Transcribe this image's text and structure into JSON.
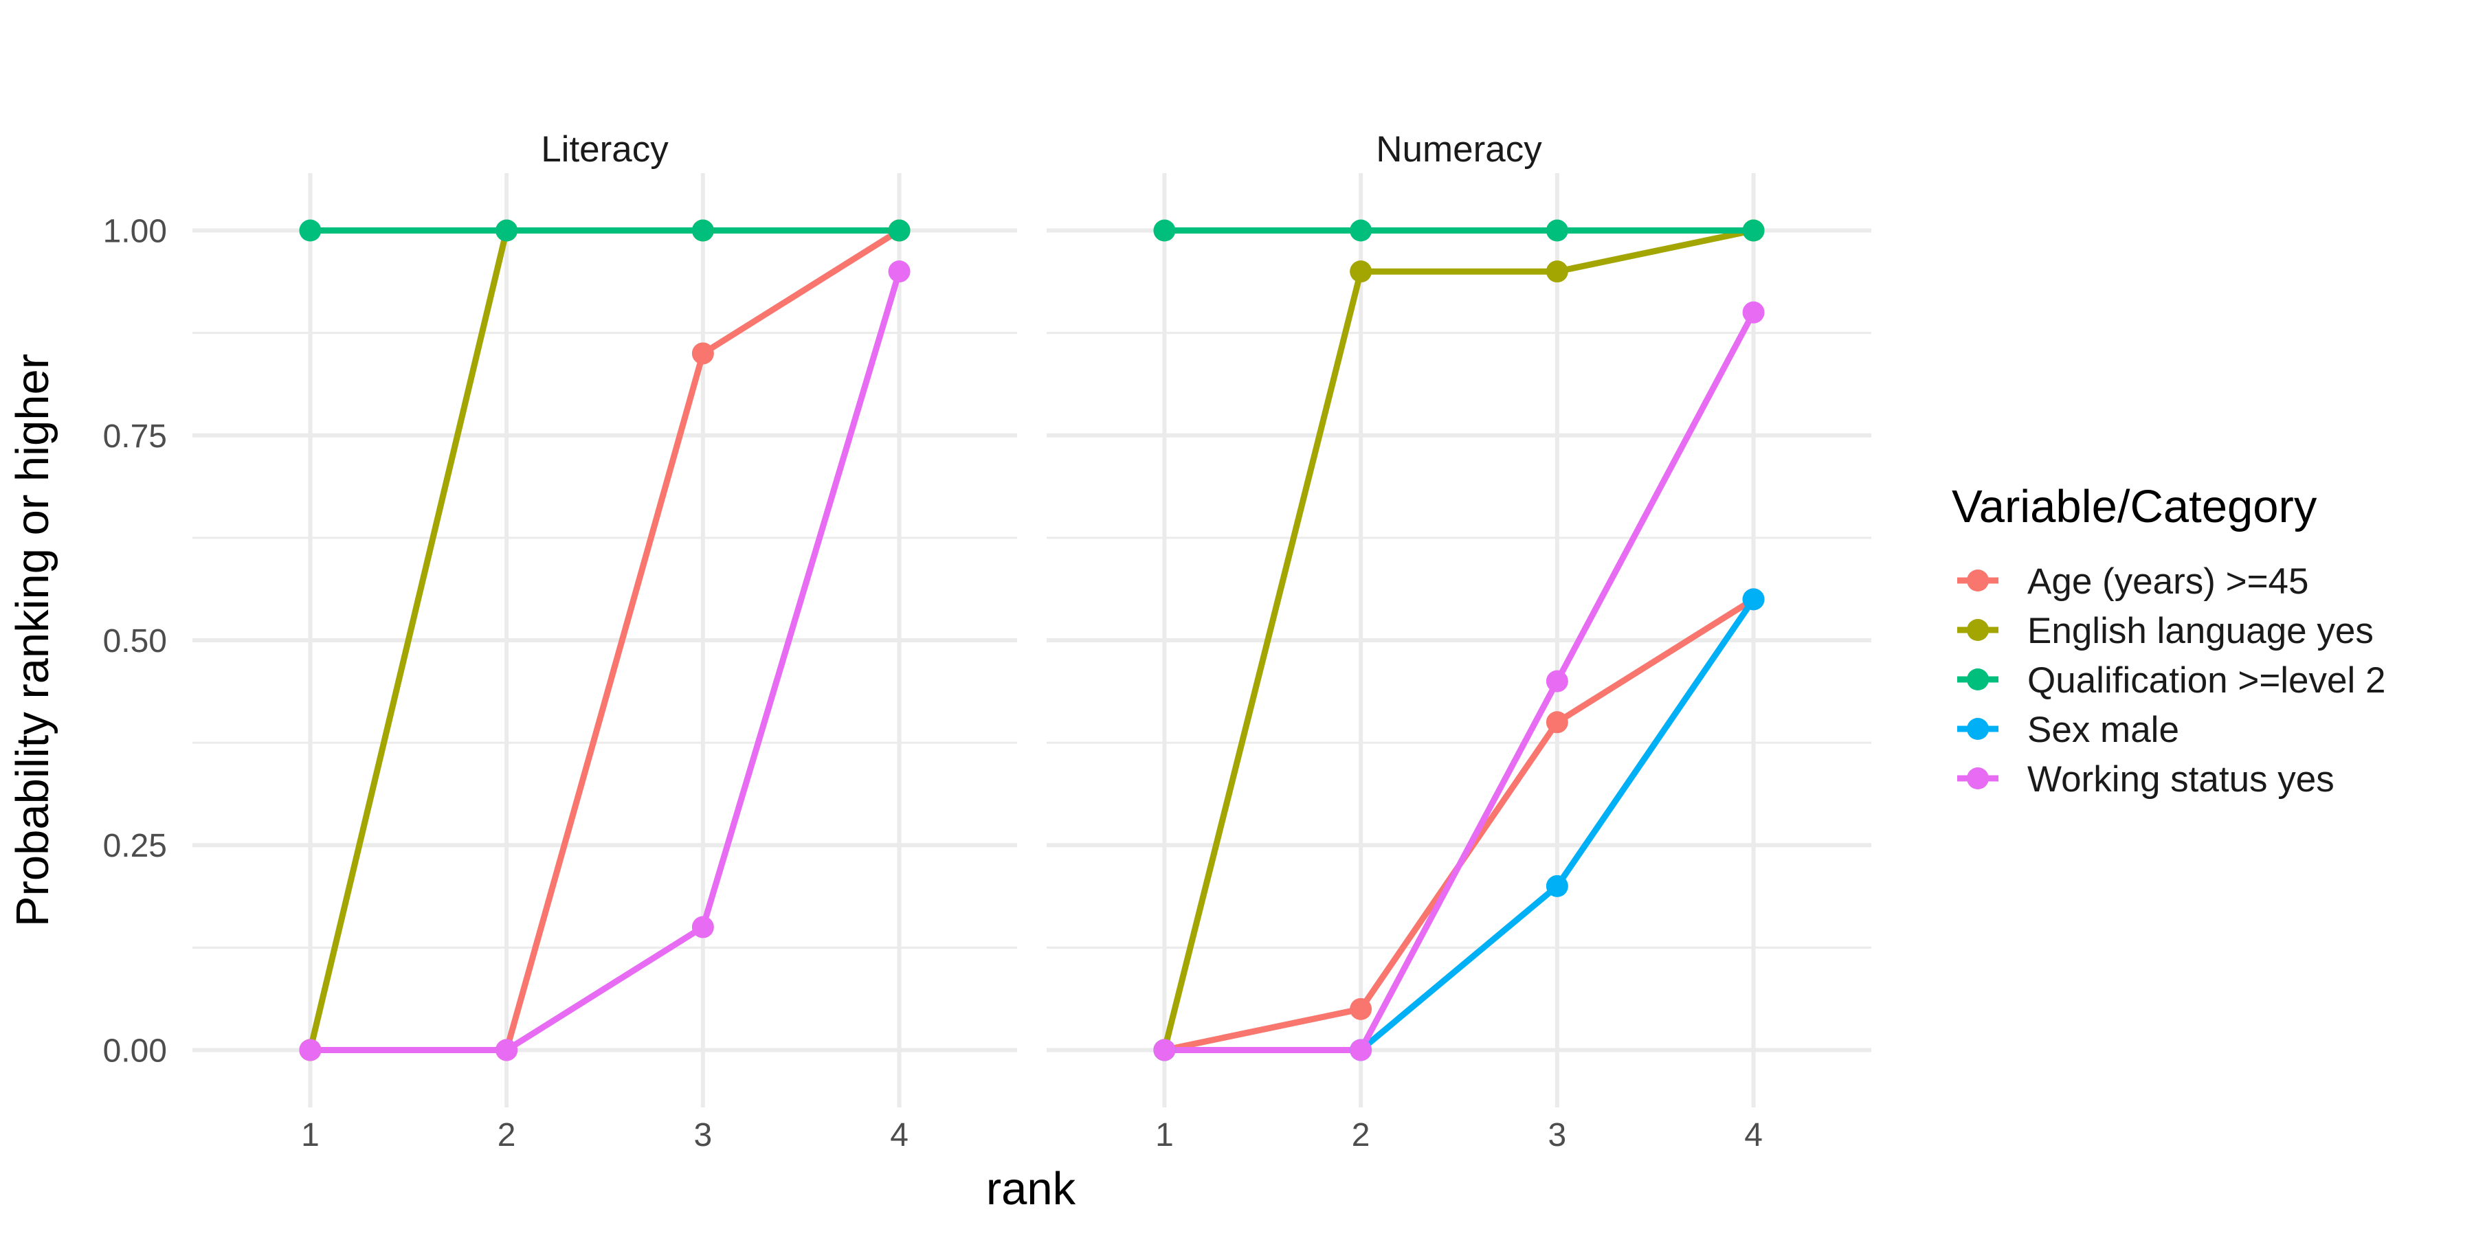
{
  "chart_data": {
    "type": "line",
    "ylabel": "Probability ranking or higher",
    "xlabel": "rank",
    "ylim": [
      -0.07,
      1.07
    ],
    "xlim": [
      0.4,
      4.6
    ],
    "x_ticks": [
      1,
      2,
      3,
      4
    ],
    "y_ticks": [
      0,
      0.25,
      0.5,
      0.75,
      1
    ],
    "y_tick_labels": [
      "0.00",
      "0.25",
      "0.50",
      "0.75",
      "1.00"
    ],
    "grid": true,
    "legend": {
      "title": "Variable/Category",
      "placement": "right",
      "entries": [
        {
          "name": "Age (years) >=45",
          "color": "#F8766D"
        },
        {
          "name": "English language yes",
          "color": "#A3A500"
        },
        {
          "name": "Qualification >=level 2",
          "color": "#00BF7D"
        },
        {
          "name": "Sex male",
          "color": "#00B0F6"
        },
        {
          "name": "Working status yes",
          "color": "#E76BF3"
        }
      ]
    },
    "panels": [
      {
        "title": "Literacy",
        "series": [
          {
            "name": "Age (years) >=45",
            "x": [
              1,
              2,
              3,
              4
            ],
            "y": [
              0,
              0,
              0.85,
              1.0
            ]
          },
          {
            "name": "English language yes",
            "x": [
              1,
              2,
              3,
              4
            ],
            "y": [
              0,
              1.0,
              1.0,
              1.0
            ]
          },
          {
            "name": "Qualification >=level 2",
            "x": [
              1,
              2,
              3,
              4
            ],
            "y": [
              1.0,
              1.0,
              1.0,
              1.0
            ]
          },
          {
            "name": "Working status yes",
            "x": [
              1,
              2,
              3,
              4
            ],
            "y": [
              0,
              0,
              0.15,
              0.95
            ]
          }
        ]
      },
      {
        "title": "Numeracy",
        "series": [
          {
            "name": "Age (years) >=45",
            "x": [
              1,
              2,
              3,
              4
            ],
            "y": [
              0,
              0.05,
              0.4,
              0.55
            ]
          },
          {
            "name": "English language yes",
            "x": [
              1,
              2,
              3,
              4
            ],
            "y": [
              0,
              0.95,
              0.95,
              1.0
            ]
          },
          {
            "name": "Qualification >=level 2",
            "x": [
              1,
              2,
              3,
              4
            ],
            "y": [
              1.0,
              1.0,
              1.0,
              1.0
            ]
          },
          {
            "name": "Sex male",
            "x": [
              1,
              2,
              3,
              4
            ],
            "y": [
              0,
              0,
              0.2,
              0.55
            ]
          },
          {
            "name": "Working status yes",
            "x": [
              1,
              2,
              3,
              4
            ],
            "y": [
              0,
              0,
              0.45,
              0.9
            ]
          }
        ]
      }
    ]
  }
}
